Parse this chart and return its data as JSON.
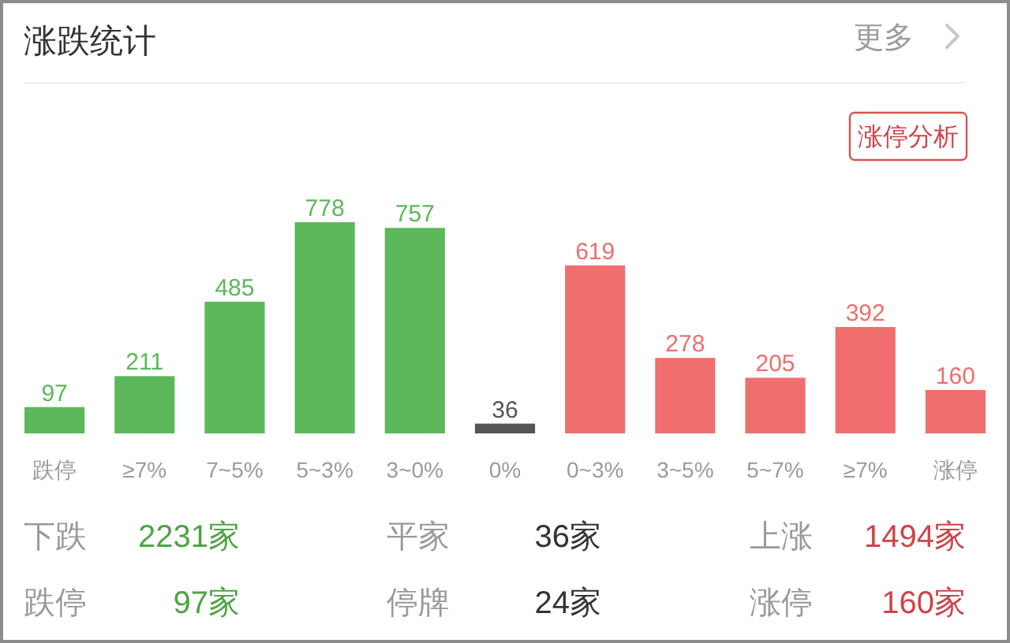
{
  "chart_data": {
    "type": "bar",
    "title": "涨跌统计",
    "categories": [
      "跌停",
      "≥7%",
      "7~5%",
      "5~3%",
      "3~0%",
      "0%",
      "0~3%",
      "3~5%",
      "5~7%",
      "≥7%",
      "涨停"
    ],
    "values": [
      97,
      211,
      485,
      778,
      757,
      36,
      619,
      278,
      205,
      392,
      160
    ],
    "colors": [
      "#5cb85a",
      "#5cb85a",
      "#5cb85a",
      "#5cb85a",
      "#5cb85a",
      "#555555",
      "#f06e6e",
      "#f06e6e",
      "#f06e6e",
      "#f06e6e",
      "#f06e6e"
    ],
    "data_labels": true,
    "annotations": [
      "更多",
      "涨停分析",
      "下跌",
      "2231家",
      "平家",
      "36家",
      "上涨",
      "1494家",
      "跌停",
      "97家",
      "停牌",
      "24家",
      "涨停",
      "160家"
    ]
  }
}
